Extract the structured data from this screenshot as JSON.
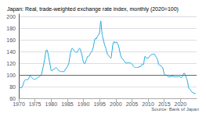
{
  "chart_data": {
    "type": "line",
    "title": "Japan: Real, trade-weighted exchange rate index, monthly (2020=100)",
    "source": "Source: Bank of Japan",
    "color": "#29abe2",
    "grid": true,
    "xlim": [
      1970,
      2025
    ],
    "xticks": [
      1970,
      1975,
      1980,
      1985,
      1990,
      1995,
      2000,
      2005,
      2010,
      2015,
      2020
    ],
    "ylim": [
      60,
      205
    ],
    "yticks": [
      60,
      80,
      100,
      120,
      140,
      160,
      180,
      200
    ],
    "reference_lines": [
      {
        "value": 100,
        "color": "#666666"
      }
    ],
    "x": [
      1970.0,
      1970.25,
      1970.5,
      1970.75,
      1971.0,
      1971.25,
      1971.5,
      1971.75,
      1972.0,
      1972.25,
      1972.5,
      1972.75,
      1973.0,
      1973.25,
      1973.5,
      1973.75,
      1974.0,
      1974.25,
      1974.5,
      1974.75,
      1975.0,
      1975.25,
      1975.5,
      1975.75,
      1976.0,
      1976.25,
      1976.5,
      1976.75,
      1977.0,
      1977.25,
      1977.5,
      1977.75,
      1978.0,
      1978.25,
      1978.5,
      1978.75,
      1979.0,
      1979.25,
      1979.5,
      1979.75,
      1980.0,
      1980.25,
      1980.5,
      1980.75,
      1981.0,
      1981.25,
      1981.5,
      1981.75,
      1982.0,
      1982.25,
      1982.5,
      1982.75,
      1983.0,
      1983.25,
      1983.5,
      1983.75,
      1984.0,
      1984.25,
      1984.5,
      1984.75,
      1985.0,
      1985.25,
      1985.5,
      1985.75,
      1986.0,
      1986.25,
      1986.5,
      1986.75,
      1987.0,
      1987.25,
      1987.5,
      1987.75,
      1988.0,
      1988.25,
      1988.5,
      1988.75,
      1989.0,
      1989.25,
      1989.5,
      1989.75,
      1990.0,
      1990.25,
      1990.5,
      1990.75,
      1991.0,
      1991.25,
      1991.5,
      1991.75,
      1992.0,
      1992.25,
      1992.5,
      1992.75,
      1993.0,
      1993.25,
      1993.5,
      1993.75,
      1994.0,
      1994.25,
      1994.5,
      1994.75,
      1995.0,
      1995.083,
      1995.167,
      1995.25,
      1995.333,
      1995.417,
      1995.5,
      1995.583,
      1995.667,
      1995.75,
      1995.833,
      1995.917,
      1996.0,
      1996.25,
      1996.5,
      1996.75,
      1997.0,
      1997.25,
      1997.5,
      1997.75,
      1998.0,
      1998.25,
      1998.5,
      1998.667,
      1998.75,
      1998.917,
      1999.0,
      1999.25,
      1999.5,
      1999.75,
      2000.0,
      2000.25,
      2000.5,
      2000.75,
      2001.0,
      2001.25,
      2001.5,
      2001.75,
      2002.0,
      2002.25,
      2002.5,
      2002.75,
      2003.0,
      2003.25,
      2003.5,
      2003.75,
      2004.0,
      2004.25,
      2004.5,
      2004.75,
      2005.0,
      2005.25,
      2005.5,
      2005.75,
      2006.0,
      2006.25,
      2006.5,
      2006.75,
      2007.0,
      2007.25,
      2007.5,
      2007.75,
      2008.0,
      2008.25,
      2008.5,
      2008.667,
      2008.75,
      2008.917,
      2009.0,
      2009.25,
      2009.5,
      2009.75,
      2010.0,
      2010.25,
      2010.5,
      2010.75,
      2011.0,
      2011.25,
      2011.5,
      2011.75,
      2012.0,
      2012.25,
      2012.5,
      2012.75,
      2013.0,
      2013.25,
      2013.5,
      2013.75,
      2014.0,
      2014.25,
      2014.5,
      2014.75,
      2015.0,
      2015.25,
      2015.5,
      2015.75,
      2016.0,
      2016.25,
      2016.5,
      2016.75,
      2017.0,
      2017.25,
      2017.5,
      2017.75,
      2018.0,
      2018.25,
      2018.5,
      2018.75,
      2019.0,
      2019.25,
      2019.5,
      2019.75,
      2020.0,
      2020.25,
      2020.5,
      2020.75,
      2021.0,
      2021.25,
      2021.5,
      2021.75,
      2022.0,
      2022.25,
      2022.5,
      2022.75,
      2023.0,
      2023.25,
      2023.5,
      2023.75,
      2024.0,
      2024.25,
      2024.5,
      2024.667
    ],
    "values": [
      77,
      77.5,
      78,
      78.5,
      79,
      82,
      87,
      90,
      92,
      92,
      92,
      92,
      93,
      97,
      99,
      97,
      96,
      94,
      93,
      93,
      93,
      93,
      94,
      95,
      96,
      97,
      98,
      99,
      101,
      107,
      113,
      120,
      127,
      137,
      143,
      143,
      138,
      131,
      123,
      116,
      108,
      107,
      109,
      110,
      110,
      112,
      113,
      112,
      110,
      108,
      107,
      107,
      106,
      106,
      106,
      106,
      106,
      109,
      110,
      113,
      114,
      117,
      121,
      130,
      138,
      143,
      146,
      145,
      143,
      141,
      140,
      139,
      139,
      141,
      144,
      146,
      145,
      140,
      135,
      128,
      122,
      120,
      120,
      124,
      128,
      132,
      132,
      133,
      136,
      138,
      140,
      143,
      147,
      154,
      162,
      163,
      162,
      166,
      168,
      169,
      174,
      179,
      184,
      189,
      193,
      192,
      187,
      181,
      176,
      171,
      169,
      167,
      164,
      158,
      153,
      149,
      145,
      139,
      135,
      134,
      132,
      130,
      129,
      132,
      138,
      144,
      150,
      156,
      158,
      155,
      156,
      157,
      154,
      152,
      147,
      140,
      134,
      130,
      128,
      127,
      125,
      123,
      121,
      121,
      121,
      121,
      121,
      121,
      121,
      120,
      119,
      117,
      115,
      114,
      113,
      113,
      113,
      113,
      113,
      115,
      114,
      115,
      118,
      119,
      118,
      120,
      124,
      130,
      132,
      131,
      129,
      129,
      129,
      131,
      132,
      134,
      135,
      136,
      136,
      136,
      136,
      133,
      131,
      129,
      125,
      118,
      117,
      117,
      115,
      114,
      113,
      107,
      102,
      100,
      100,
      100,
      98,
      97,
      97,
      97,
      97,
      98,
      98,
      98,
      97,
      97,
      97,
      97,
      97,
      97,
      97,
      97,
      97,
      95,
      97,
      100,
      103,
      103,
      100,
      96,
      93,
      87,
      79,
      76,
      75,
      73,
      71,
      70,
      70,
      68,
      68,
      69
    ]
  }
}
